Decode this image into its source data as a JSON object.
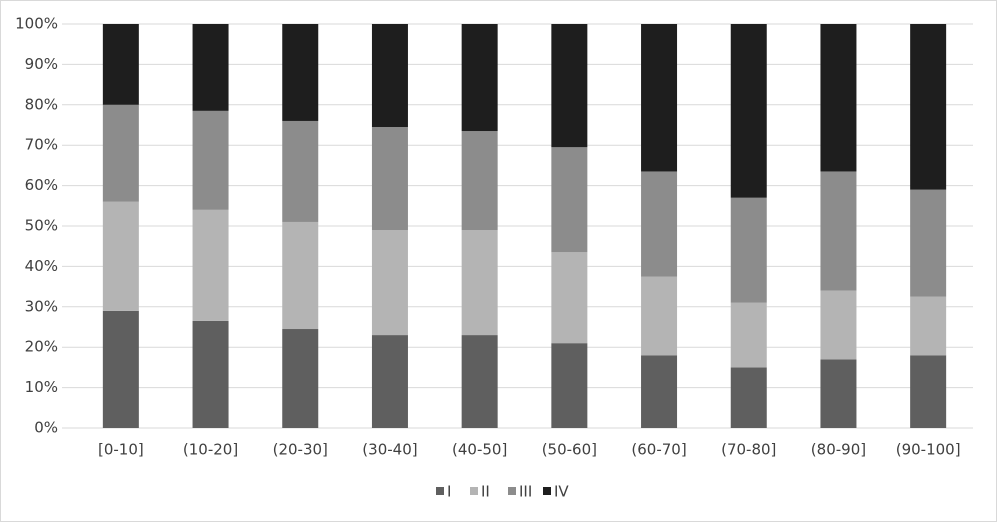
{
  "chart_data": {
    "type": "stacked_bar_100",
    "categories": [
      "[0-10]",
      "(10-20]",
      "(20-30]",
      "(30-40]",
      "(40-50]",
      "(50-60]",
      "(60-70]",
      "(70-80]",
      "(80-90]",
      "(90-100]"
    ],
    "series": [
      {
        "name": "I",
        "color": "#5f5f5f",
        "values": [
          29,
          26.5,
          24.5,
          23,
          23,
          21,
          18,
          15,
          17,
          18
        ]
      },
      {
        "name": "II",
        "color": "#b4b4b4",
        "values": [
          27,
          27.5,
          26.5,
          26,
          26,
          22.5,
          19.5,
          16,
          17,
          14.5
        ]
      },
      {
        "name": "III",
        "color": "#8c8c8c",
        "values": [
          24,
          24.5,
          25,
          25.5,
          24.5,
          26,
          26,
          26,
          29.5,
          26.5
        ]
      },
      {
        "name": "IV",
        "color": "#1e1e1e",
        "values": [
          20,
          21.5,
          24,
          25.5,
          26.5,
          30.5,
          36.5,
          43,
          36.5,
          41
        ]
      }
    ],
    "ylim": [
      0,
      100
    ],
    "yticks": [
      {
        "value": 0,
        "label": "0%"
      },
      {
        "value": 10,
        "label": "10%"
      },
      {
        "value": 20,
        "label": "20%"
      },
      {
        "value": 30,
        "label": "30%"
      },
      {
        "value": 40,
        "label": "40%"
      },
      {
        "value": 50,
        "label": "50%"
      },
      {
        "value": 60,
        "label": "60%"
      },
      {
        "value": 70,
        "label": "70%"
      },
      {
        "value": 80,
        "label": "80%"
      },
      {
        "value": 90,
        "label": "90%"
      },
      {
        "value": 100,
        "label": "100%"
      }
    ],
    "grid": true,
    "legend": "bottom"
  }
}
